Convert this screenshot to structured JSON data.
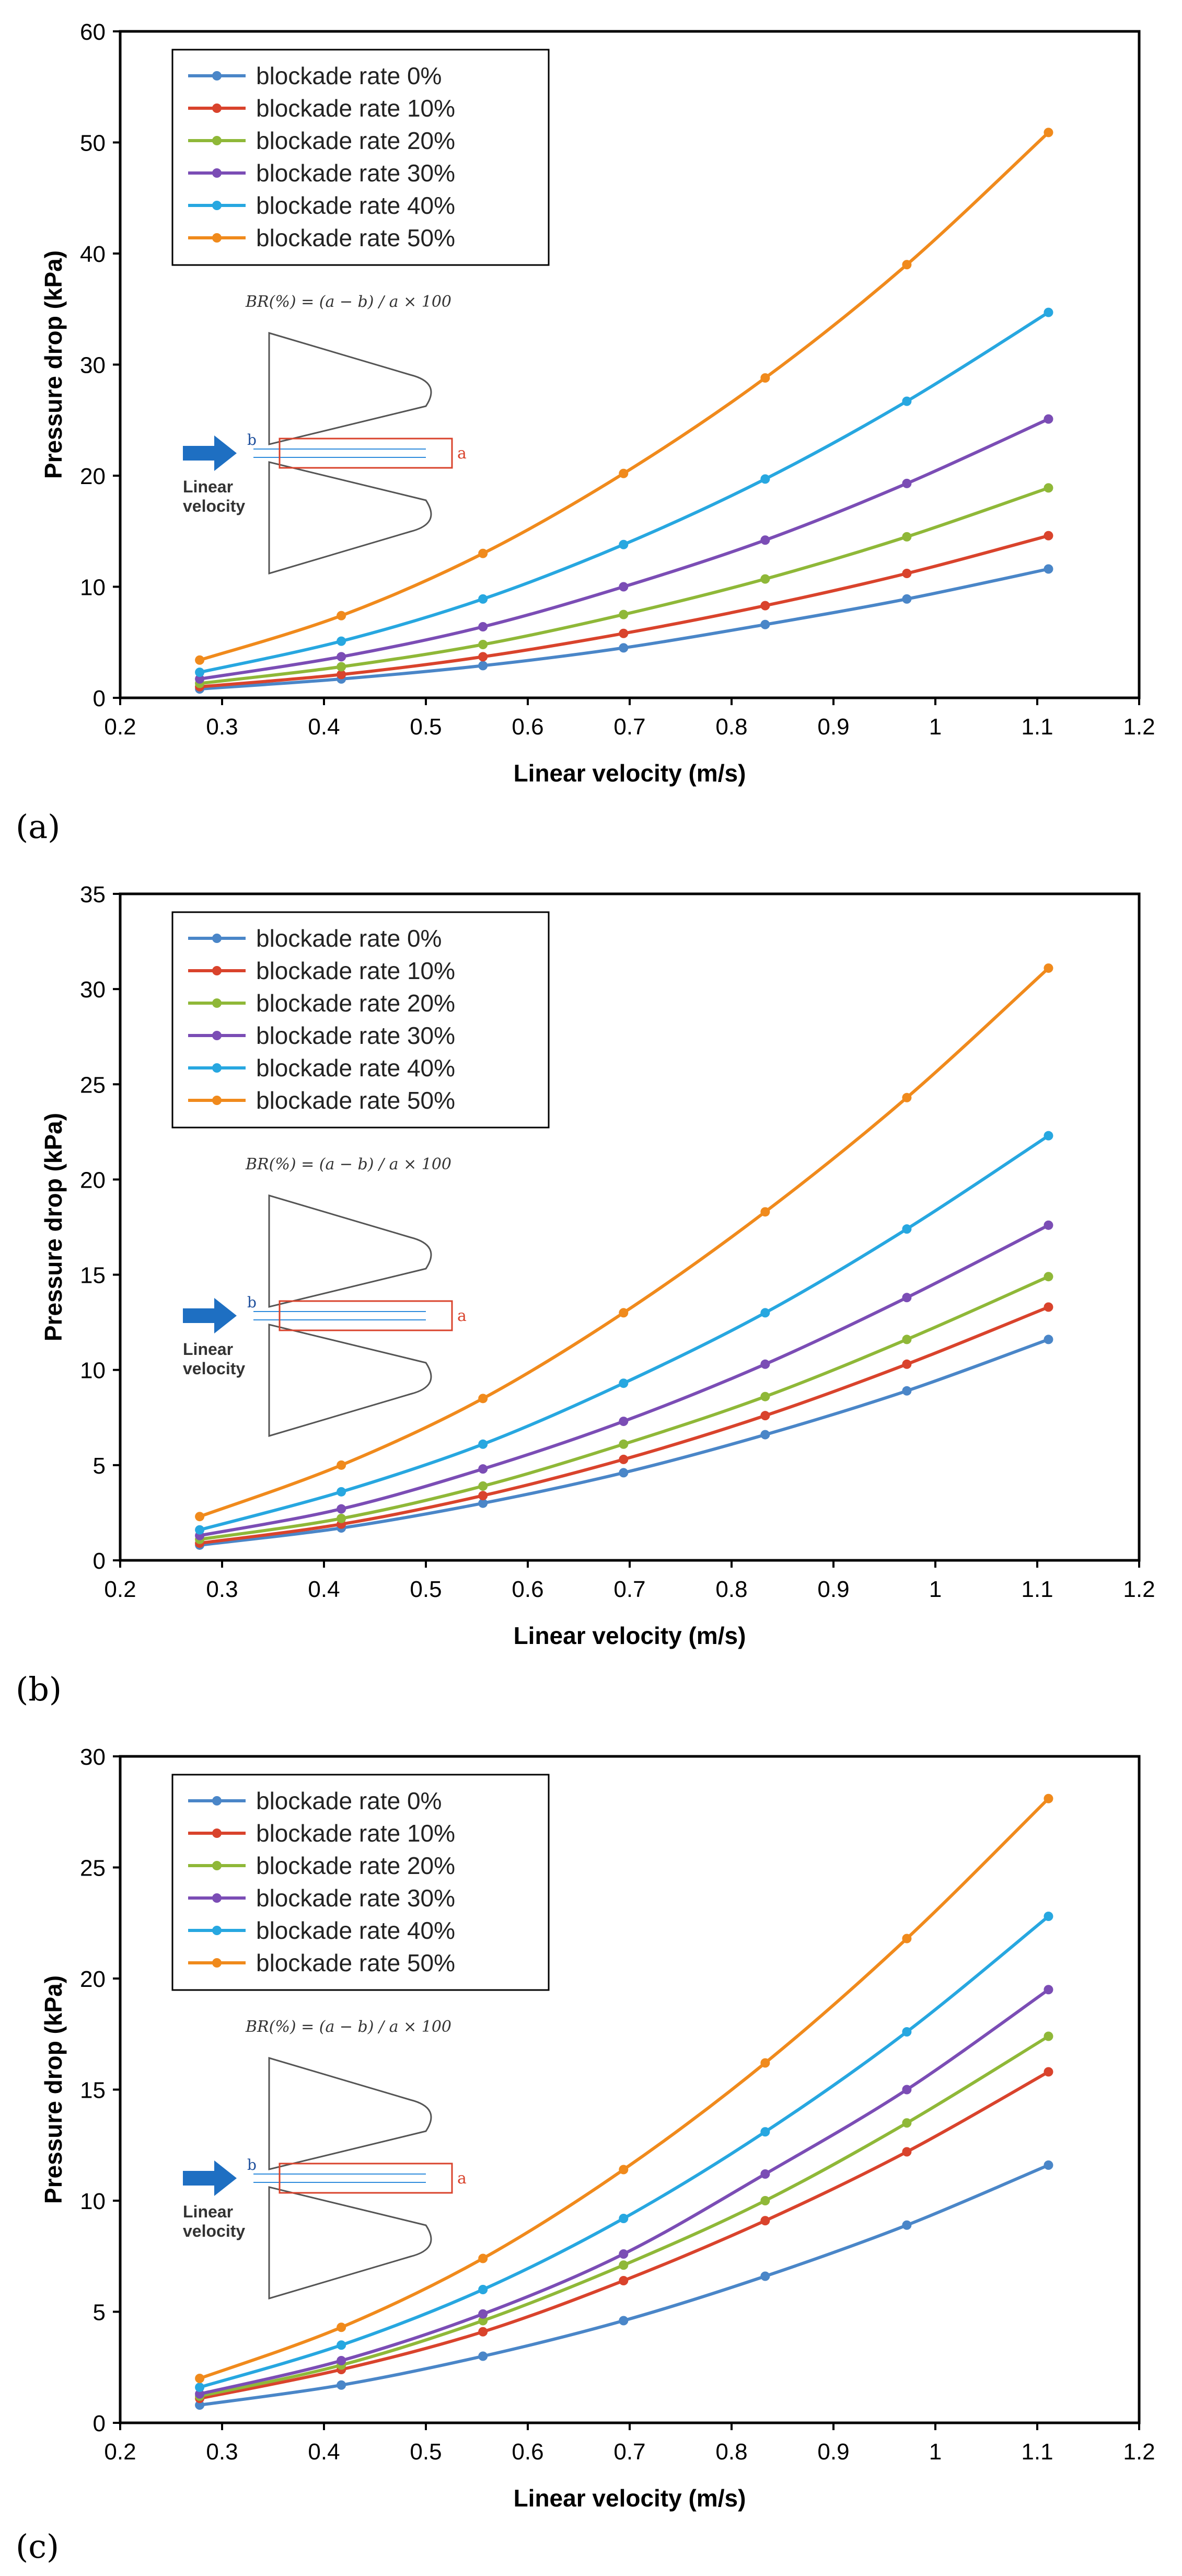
{
  "colors": {
    "br0": "#4a86c8",
    "br10": "#d9432c",
    "br20": "#8fb838",
    "br30": "#7b4db5",
    "br40": "#27a7e0",
    "br50": "#f08a1c",
    "arrow": "#1e6fc2",
    "dimension": "#d9432c",
    "gap": "#2e8bdc"
  },
  "chart_data": [
    {
      "type": "line",
      "panel_label": "(a)",
      "xlabel": "Linear velocity (m/s)",
      "ylabel": "Pressure drop (kPa)",
      "xlim": [
        0.2,
        1.2
      ],
      "ylim": [
        0,
        60
      ],
      "xticks": [
        "0.2",
        "0.3",
        "0.4",
        "0.5",
        "0.6",
        "0.7",
        "0.8",
        "0.9",
        "1",
        "1.1",
        "1.2"
      ],
      "yticks": [
        "0",
        "10",
        "20",
        "30",
        "40",
        "50",
        "60"
      ],
      "legend_position": "top-left",
      "grid": false,
      "x": [
        0.278,
        0.417,
        0.556,
        0.694,
        0.833,
        0.972,
        1.111
      ],
      "series": [
        {
          "name": "blockade rate 0%",
          "values": [
            0.8,
            1.7,
            2.9,
            4.5,
            6.6,
            8.9,
            11.6
          ]
        },
        {
          "name": "blockade rate 10%",
          "values": [
            1.0,
            2.1,
            3.7,
            5.8,
            8.3,
            11.2,
            14.6
          ]
        },
        {
          "name": "blockade rate 20%",
          "values": [
            1.3,
            2.8,
            4.8,
            7.5,
            10.7,
            14.5,
            18.9
          ]
        },
        {
          "name": "blockade rate 30%",
          "values": [
            1.7,
            3.7,
            6.4,
            10.0,
            14.2,
            19.3,
            25.1
          ]
        },
        {
          "name": "blockade rate 40%",
          "values": [
            2.3,
            5.1,
            8.9,
            13.8,
            19.7,
            26.7,
            34.7
          ]
        },
        {
          "name": "blockade rate 50%",
          "values": [
            3.4,
            7.4,
            13.0,
            20.2,
            28.8,
            39.0,
            50.9
          ]
        }
      ],
      "inset": {
        "formula": "BR(%) = (a − b) / a × 100",
        "label_a": "a",
        "label_b": "b",
        "caption_line1": "Linear",
        "caption_line2": "velocity"
      }
    },
    {
      "type": "line",
      "panel_label": "(b)",
      "xlabel": "Linear velocity (m/s)",
      "ylabel": "Pressure drop (kPa)",
      "xlim": [
        0.2,
        1.2
      ],
      "ylim": [
        0,
        35
      ],
      "xticks": [
        "0.2",
        "0.3",
        "0.4",
        "0.5",
        "0.6",
        "0.7",
        "0.8",
        "0.9",
        "1",
        "1.1",
        "1.2"
      ],
      "yticks": [
        "0",
        "5",
        "10",
        "15",
        "20",
        "25",
        "30",
        "35"
      ],
      "legend_position": "top-left",
      "grid": false,
      "x": [
        0.278,
        0.417,
        0.556,
        0.694,
        0.833,
        0.972,
        1.111
      ],
      "series": [
        {
          "name": "blockade rate 0%",
          "values": [
            0.8,
            1.7,
            3.0,
            4.6,
            6.6,
            8.9,
            11.6
          ]
        },
        {
          "name": "blockade rate 10%",
          "values": [
            0.9,
            1.9,
            3.4,
            5.3,
            7.6,
            10.3,
            13.3
          ]
        },
        {
          "name": "blockade rate 20%",
          "values": [
            1.1,
            2.2,
            3.9,
            6.1,
            8.6,
            11.6,
            14.9
          ]
        },
        {
          "name": "blockade rate 30%",
          "values": [
            1.3,
            2.7,
            4.8,
            7.3,
            10.3,
            13.8,
            17.6
          ]
        },
        {
          "name": "blockade rate 40%",
          "values": [
            1.6,
            3.6,
            6.1,
            9.3,
            13.0,
            17.4,
            22.3
          ]
        },
        {
          "name": "blockade rate 50%",
          "values": [
            2.3,
            5.0,
            8.5,
            13.0,
            18.3,
            24.3,
            31.1
          ]
        }
      ],
      "inset": {
        "formula": "BR(%) = (a − b) / a × 100",
        "label_a": "a",
        "label_b": "b",
        "caption_line1": "Linear",
        "caption_line2": "velocity"
      }
    },
    {
      "type": "line",
      "panel_label": "(c)",
      "xlabel": "Linear velocity (m/s)",
      "ylabel": "Pressure drop (kPa)",
      "xlim": [
        0.2,
        1.2
      ],
      "ylim": [
        0,
        30
      ],
      "xticks": [
        "0.2",
        "0.3",
        "0.4",
        "0.5",
        "0.6",
        "0.7",
        "0.8",
        "0.9",
        "1",
        "1.1",
        "1.2"
      ],
      "yticks": [
        "0",
        "5",
        "10",
        "15",
        "20",
        "25",
        "30"
      ],
      "legend_position": "top-left",
      "grid": false,
      "x": [
        0.278,
        0.417,
        0.556,
        0.694,
        0.833,
        0.972,
        1.111
      ],
      "series": [
        {
          "name": "blockade rate 0%",
          "values": [
            0.8,
            1.7,
            3.0,
            4.6,
            6.6,
            8.9,
            11.6
          ]
        },
        {
          "name": "blockade rate 10%",
          "values": [
            1.1,
            2.4,
            4.1,
            6.4,
            9.1,
            12.2,
            15.8
          ]
        },
        {
          "name": "blockade rate 20%",
          "values": [
            1.2,
            2.6,
            4.6,
            7.1,
            10.0,
            13.5,
            17.4
          ]
        },
        {
          "name": "blockade rate 30%",
          "values": [
            1.3,
            2.8,
            4.9,
            7.6,
            11.2,
            15.0,
            19.5
          ]
        },
        {
          "name": "blockade rate 40%",
          "values": [
            1.6,
            3.5,
            6.0,
            9.2,
            13.1,
            17.6,
            22.8
          ]
        },
        {
          "name": "blockade rate 50%",
          "values": [
            2.0,
            4.3,
            7.4,
            11.4,
            16.2,
            21.8,
            28.1
          ]
        }
      ],
      "inset": {
        "formula": "BR(%) = (a − b) / a × 100",
        "label_a": "a",
        "label_b": "b",
        "caption_line1": "Linear",
        "caption_line2": "velocity"
      }
    }
  ]
}
